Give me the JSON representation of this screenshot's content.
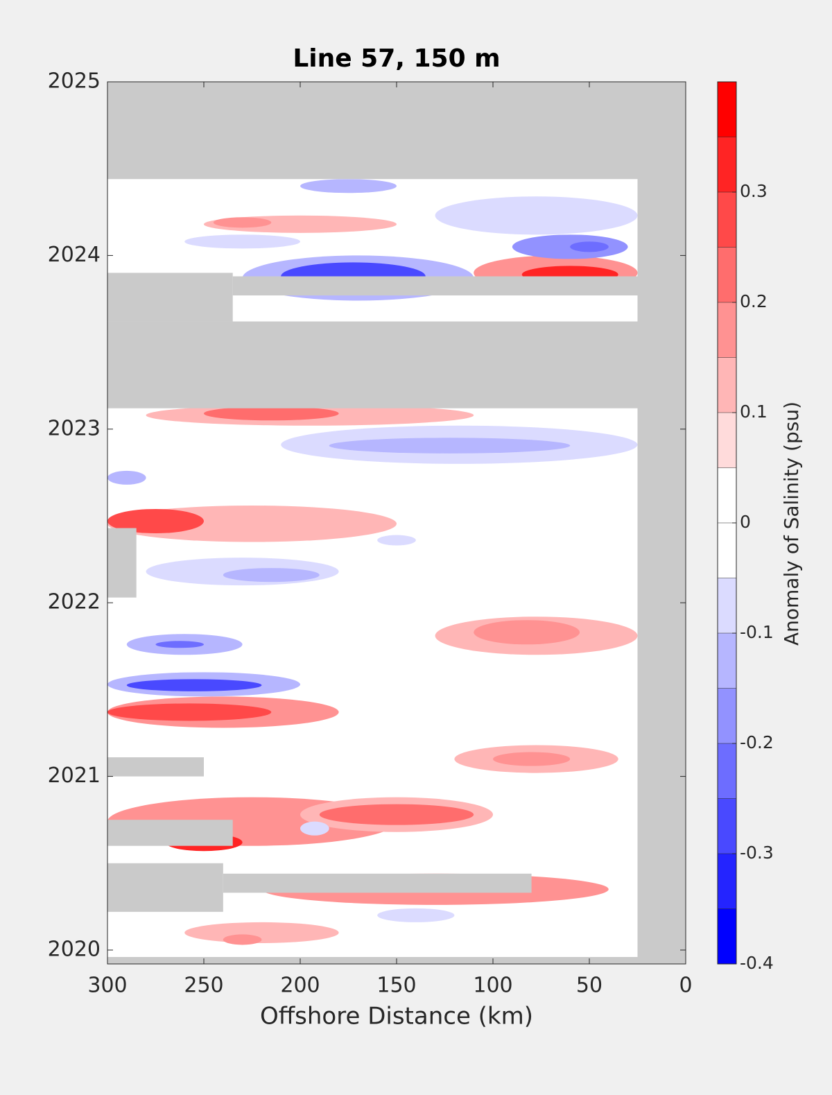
{
  "chart_data": {
    "type": "contour",
    "title": "Line 57, 150 m",
    "x_label": "Offshore Distance (km)",
    "colorbar_label": "Anomaly of Salinity (psu)",
    "xlim": [
      300,
      0
    ],
    "xticks": [
      300,
      250,
      200,
      150,
      100,
      50,
      0
    ],
    "ylim": [
      2019.92,
      2025
    ],
    "yticks": [
      2020,
      2021,
      2022,
      2023,
      2024,
      2025
    ],
    "clim": [
      -0.4,
      0.4
    ],
    "cticks": [
      -0.4,
      -0.3,
      -0.2,
      -0.1,
      0,
      0.1,
      0.2,
      0.3
    ],
    "levels": [
      -0.4,
      -0.35,
      -0.3,
      -0.25,
      -0.2,
      -0.15,
      -0.1,
      -0.05,
      0,
      0.05,
      0.1,
      0.15,
      0.2,
      0.25,
      0.3,
      0.35,
      0.4
    ],
    "colormap": [
      "#0000ff",
      "#ffffff",
      "#ff0000"
    ],
    "no_data_color": "#cacaca",
    "data_extent": {
      "x": [
        300,
        25
      ],
      "y": [
        2019.96,
        2024.44
      ]
    },
    "anomalies": [
      {
        "x": [
          300,
          150
        ],
        "y": [
          2022.35,
          2022.56
        ],
        "value": 0.1
      },
      {
        "x": [
          300,
          250
        ],
        "y": [
          2022.4,
          2022.54
        ],
        "value": 0.25
      },
      {
        "x": [
          300,
          180
        ],
        "y": [
          2021.28,
          2021.46
        ],
        "value": 0.15
      },
      {
        "x": [
          300,
          215
        ],
        "y": [
          2021.32,
          2021.42
        ],
        "value": 0.25
      },
      {
        "x": [
          300,
          150
        ],
        "y": [
          2020.6,
          2020.88
        ],
        "value": 0.15
      },
      {
        "x": [
          270,
          230
        ],
        "y": [
          2020.57,
          2020.67
        ],
        "value": 0.3
      },
      {
        "x": [
          200,
          100
        ],
        "y": [
          2020.68,
          2020.88
        ],
        "value": 0.1
      },
      {
        "x": [
          190,
          110
        ],
        "y": [
          2020.72,
          2020.84
        ],
        "value": 0.2
      },
      {
        "x": [
          220,
          40
        ],
        "y": [
          2020.26,
          2020.44
        ],
        "value": 0.15
      },
      {
        "x": [
          120,
          35
        ],
        "y": [
          2021.02,
          2021.18
        ],
        "value": 0.1
      },
      {
        "x": [
          100,
          60
        ],
        "y": [
          2021.06,
          2021.14
        ],
        "value": 0.15
      },
      {
        "x": [
          130,
          25
        ],
        "y": [
          2021.7,
          2021.92
        ],
        "value": 0.1
      },
      {
        "x": [
          110,
          55
        ],
        "y": [
          2021.76,
          2021.9
        ],
        "value": 0.15
      },
      {
        "x": [
          110,
          25
        ],
        "y": [
          2023.8,
          2024.0
        ],
        "value": 0.15
      },
      {
        "x": [
          85,
          35
        ],
        "y": [
          2023.84,
          2023.94
        ],
        "value": 0.3
      },
      {
        "x": [
          250,
          150
        ],
        "y": [
          2024.13,
          2024.23
        ],
        "value": 0.1
      },
      {
        "x": [
          245,
          215
        ],
        "y": [
          2024.16,
          2024.22
        ],
        "value": 0.15
      },
      {
        "x": [
          280,
          110
        ],
        "y": [
          2023.02,
          2023.14
        ],
        "value": 0.1
      },
      {
        "x": [
          250,
          180
        ],
        "y": [
          2023.05,
          2023.13
        ],
        "value": 0.2
      },
      {
        "x": [
          260,
          180
        ],
        "y": [
          2020.04,
          2020.16
        ],
        "value": 0.1
      },
      {
        "x": [
          240,
          220
        ],
        "y": [
          2020.03,
          2020.09
        ],
        "value": 0.15
      },
      {
        "x": [
          230,
          110
        ],
        "y": [
          2023.74,
          2024.0
        ],
        "value": -0.15
      },
      {
        "x": [
          210,
          135
        ],
        "y": [
          2023.8,
          2023.96
        ],
        "value": -0.3
      },
      {
        "x": [
          300,
          200
        ],
        "y": [
          2021.46,
          2021.6
        ],
        "value": -0.15
      },
      {
        "x": [
          290,
          220
        ],
        "y": [
          2021.49,
          2021.56
        ],
        "value": -0.3
      },
      {
        "x": [
          290,
          230
        ],
        "y": [
          2021.7,
          2021.82
        ],
        "value": -0.15
      },
      {
        "x": [
          275,
          250
        ],
        "y": [
          2021.74,
          2021.78
        ],
        "value": -0.25
      },
      {
        "x": [
          210,
          25
        ],
        "y": [
          2022.8,
          2023.02
        ],
        "value": -0.1
      },
      {
        "x": [
          185,
          60
        ],
        "y": [
          2022.86,
          2022.95
        ],
        "value": -0.15
      },
      {
        "x": [
          130,
          25
        ],
        "y": [
          2024.12,
          2024.34
        ],
        "value": -0.1
      },
      {
        "x": [
          90,
          30
        ],
        "y": [
          2023.98,
          2024.12
        ],
        "value": -0.2
      },
      {
        "x": [
          60,
          40
        ],
        "y": [
          2024.02,
          2024.08
        ],
        "value": -0.25
      },
      {
        "x": [
          200,
          150
        ],
        "y": [
          2024.36,
          2024.44
        ],
        "value": -0.15
      },
      {
        "x": [
          260,
          200
        ],
        "y": [
          2024.04,
          2024.12
        ],
        "value": -0.1
      },
      {
        "x": [
          300,
          280
        ],
        "y": [
          2022.68,
          2022.76
        ],
        "value": -0.15
      },
      {
        "x": [
          280,
          180
        ],
        "y": [
          2022.1,
          2022.26
        ],
        "value": -0.1
      },
      {
        "x": [
          240,
          190
        ],
        "y": [
          2022.12,
          2022.2
        ],
        "value": -0.15
      },
      {
        "x": [
          160,
          140
        ],
        "y": [
          2022.33,
          2022.39
        ],
        "value": -0.1
      },
      {
        "x": [
          160,
          120
        ],
        "y": [
          2020.16,
          2020.24
        ],
        "value": -0.1
      },
      {
        "x": [
          200,
          185
        ],
        "y": [
          2020.66,
          2020.74
        ],
        "value": -0.1
      }
    ],
    "gaps": [
      {
        "x": [
          300,
          25
        ],
        "y": [
          2023.12,
          2023.62
        ]
      },
      {
        "x": [
          300,
          235
        ],
        "y": [
          2023.62,
          2023.9
        ]
      },
      {
        "x": [
          235,
          25
        ],
        "y": [
          2023.77,
          2023.88
        ]
      },
      {
        "x": [
          300,
          285
        ],
        "y": [
          2022.03,
          2022.43
        ]
      },
      {
        "x": [
          300,
          250
        ],
        "y": [
          2021.0,
          2021.11
        ]
      },
      {
        "x": [
          300,
          235
        ],
        "y": [
          2020.6,
          2020.75
        ]
      },
      {
        "x": [
          300,
          240
        ],
        "y": [
          2020.22,
          2020.5
        ]
      },
      {
        "x": [
          240,
          80
        ],
        "y": [
          2020.33,
          2020.44
        ]
      }
    ]
  }
}
